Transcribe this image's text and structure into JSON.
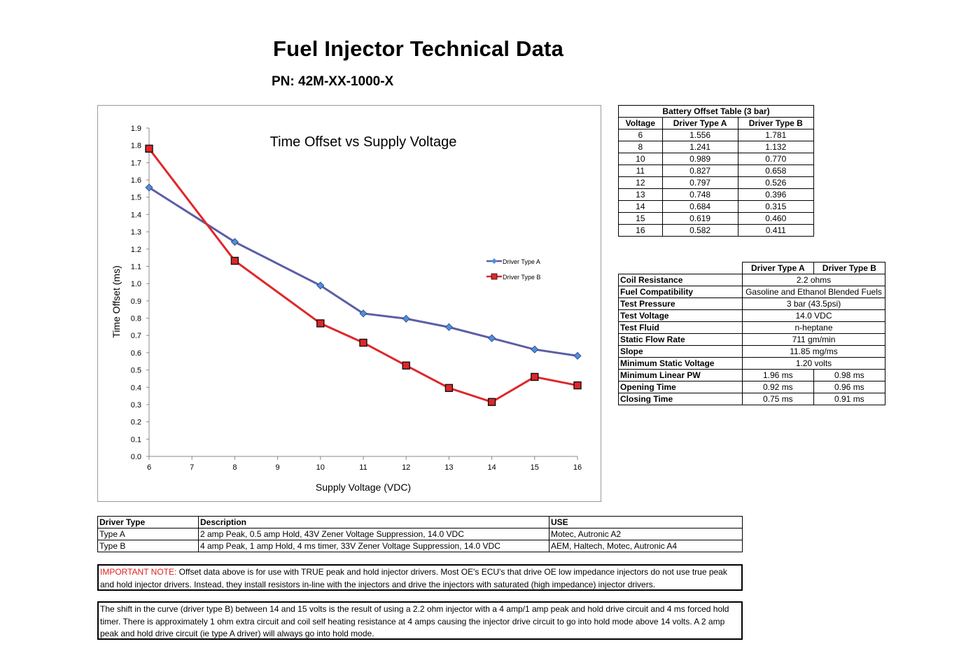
{
  "title": "Fuel Injector Technical Data",
  "part_number": "PN: 42M-XX-1000-X",
  "chart_data": {
    "type": "line",
    "title": "Time Offset vs Supply Voltage",
    "xlabel": "Supply Voltage (VDC)",
    "ylabel": "Time Offset (ms)",
    "xlim": [
      6,
      16
    ],
    "ylim": [
      0,
      1.9
    ],
    "xticks": [
      "6",
      "7",
      "8",
      "9",
      "10",
      "11",
      "12",
      "13",
      "14",
      "15",
      "16"
    ],
    "yticks": [
      "0.0",
      "0.1",
      "0.2",
      "0.3",
      "0.4",
      "0.5",
      "0.6",
      "0.7",
      "0.8",
      "0.9",
      "1.0",
      "1.1",
      "1.2",
      "1.3",
      "1.4",
      "1.5",
      "1.6",
      "1.7",
      "1.8",
      "1.9"
    ],
    "x": [
      6,
      8,
      10,
      11,
      12,
      13,
      14,
      15,
      16
    ],
    "legend_position": "right",
    "grid": false,
    "series": [
      {
        "name": "Driver Type A",
        "color": "#5b5ea6",
        "marker": "diamond",
        "marker_color": "#4f8fd8",
        "values": [
          1.556,
          1.241,
          0.989,
          0.827,
          0.797,
          0.748,
          0.684,
          0.619,
          0.582
        ]
      },
      {
        "name": "Driver Type B",
        "color": "#e0262a",
        "marker": "square",
        "marker_color": "#e0262a",
        "values": [
          1.781,
          1.132,
          0.77,
          0.658,
          0.526,
          0.396,
          0.315,
          0.46,
          0.411
        ]
      }
    ]
  },
  "battery_table": {
    "caption": "Battery Offset Table (3 bar)",
    "headers": [
      "Voltage",
      "Driver Type A",
      "Driver Type B"
    ],
    "rows": [
      [
        "6",
        "1.556",
        "1.781"
      ],
      [
        "8",
        "1.241",
        "1.132"
      ],
      [
        "10",
        "0.989",
        "0.770"
      ],
      [
        "11",
        "0.827",
        "0.658"
      ],
      [
        "12",
        "0.797",
        "0.526"
      ],
      [
        "13",
        "0.748",
        "0.396"
      ],
      [
        "14",
        "0.684",
        "0.315"
      ],
      [
        "15",
        "0.619",
        "0.460"
      ],
      [
        "16",
        "0.582",
        "0.411"
      ]
    ]
  },
  "specs_table": {
    "headers": [
      "Driver Type A",
      "Driver Type B"
    ],
    "rows": [
      {
        "label": "Coil Resistance",
        "value": "2.2 ohms"
      },
      {
        "label": "Fuel Compatibility",
        "value": "Gasoline and Ethanol Blended Fuels"
      },
      {
        "label": "Test Pressure",
        "value": "3 bar (43.5psi)"
      },
      {
        "label": "Test Voltage",
        "value": "14.0 VDC"
      },
      {
        "label": "Test Fluid",
        "value": "n-heptane"
      },
      {
        "label": "Static Flow Rate",
        "value": "711 gm/min"
      },
      {
        "label": "Slope",
        "value": "11.85 mg/ms"
      },
      {
        "label": "Minimum Static Voltage",
        "value": "1.20 volts"
      },
      {
        "label": "Minimum Linear PW",
        "a": "1.96 ms",
        "b": "0.98 ms"
      },
      {
        "label": "Opening Time",
        "a": "0.92 ms",
        "b": "0.96 ms"
      },
      {
        "label": "Closing Time",
        "a": "0.75 ms",
        "b": "0.91 ms"
      }
    ]
  },
  "driver_table": {
    "headers": [
      "Driver Type",
      "Description",
      "USE"
    ],
    "rows": [
      [
        "Type A",
        "2 amp Peak, 0.5 amp Hold, 43V Zener Voltage Suppression, 14.0 VDC",
        "Motec, Autronic A2"
      ],
      [
        "Type B",
        "4 amp Peak, 1 amp Hold, 4 ms timer, 33V Zener Voltage Suppression, 14.0 VDC",
        "AEM, Haltech, Motec, Autronic A4"
      ]
    ]
  },
  "notes": {
    "important_label": "IMPORTANT NOTE:",
    "important_text": " Offset data above is for use with TRUE peak and hold injector drivers.  Most OE's ECU's that drive OE low impedance injectors do not use true peak and hold injector drivers.  Instead, they install resistors in-line with the injectors and drive the injectors with saturated (high impedance) injector drivers.",
    "shift_text": "The shift in the curve (driver type B) between 14 and 15 volts is the result of using a 2.2 ohm injector with a 4 amp/1 amp peak and hold drive circuit and 4 ms forced hold timer. There is approximately 1 ohm extra circuit and coil self heating resistance at 4 amps causing the injector drive circuit to go into hold mode above 14 volts. A 2 amp peak and hold drive circuit (ie type A driver) will always go into hold mode."
  }
}
